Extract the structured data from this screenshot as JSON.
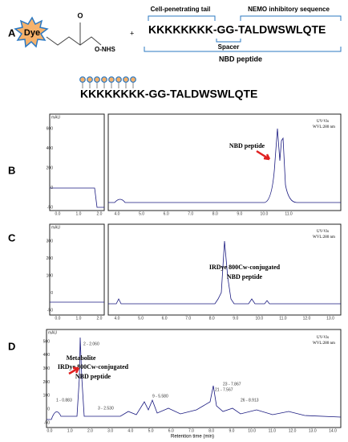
{
  "panel_a": {
    "label": "A",
    "dye": "Dye",
    "carbonyl": "O",
    "ester": "O-NHS",
    "plus": "+",
    "tail_label": "Cell-penetrating tail",
    "sequence_label": "NEMO inhibitory sequence",
    "sequence": "KKKKKKKK-GG-TALDWSWLQTE",
    "spacer": "Spacer",
    "peptide_label": "NBD peptide",
    "conjugate_sequence": "KKKKKKKK-GG-TALDWSWLQTE"
  },
  "panel_b": {
    "label": "B",
    "annotation": "NBD peptide",
    "detector": "UV-Vis",
    "wavelength": "WVL:280 nm",
    "y_unit": "mAU",
    "left_xticks": [
      "0.0",
      "1.0",
      "2.0"
    ],
    "xticks": [
      "4.0",
      "5.0",
      "6.0",
      "7.0",
      "8.0",
      "9.0",
      "10.0",
      "11.0"
    ],
    "yticks": [
      "600",
      "400",
      "200",
      "0",
      "-50"
    ]
  },
  "panel_c": {
    "label": "C",
    "annotation": [
      "IRDye 800Cw-conjugated",
      "NBD peptide"
    ],
    "detector": "UV-Vis",
    "wavelength": "WVL:280 nm",
    "y_unit": "mAU",
    "left_xticks": [
      "0.0",
      "1.0",
      "2.0"
    ],
    "xticks": [
      "4.0",
      "5.0",
      "6.0",
      "7.0",
      "8.0",
      "9.0",
      "10.0",
      "11.0",
      "12.0",
      "13.0"
    ],
    "yticks": [
      "300",
      "200",
      "100",
      "0",
      "-50"
    ]
  },
  "panel_d": {
    "label": "D",
    "annotation": [
      "Metabolite",
      "IRDye 800Cw-conjugated",
      "NBD peptide"
    ],
    "detector": "UV-Vis",
    "wavelength": "WVL:280 nm",
    "y_unit": "mAU",
    "xticks": [
      "0.0",
      "1.0",
      "2.0",
      "3.0",
      "4.0",
      "5.0",
      "6.0",
      "7.0",
      "8.0",
      "9.0",
      "10.0",
      "11.0",
      "12.0",
      "13.0",
      "14.0"
    ],
    "yticks": [
      "500",
      "400",
      "300",
      "200",
      "100",
      "0",
      "-50"
    ],
    "peak_labels": [
      "1 - 0.883",
      "2 - 2.060",
      "3 - 2.530",
      "9 - 5.580",
      "21 - 7.567",
      "23 - 7.867",
      "26 - 8.913"
    ],
    "x_title": "Retention time (min)"
  }
}
